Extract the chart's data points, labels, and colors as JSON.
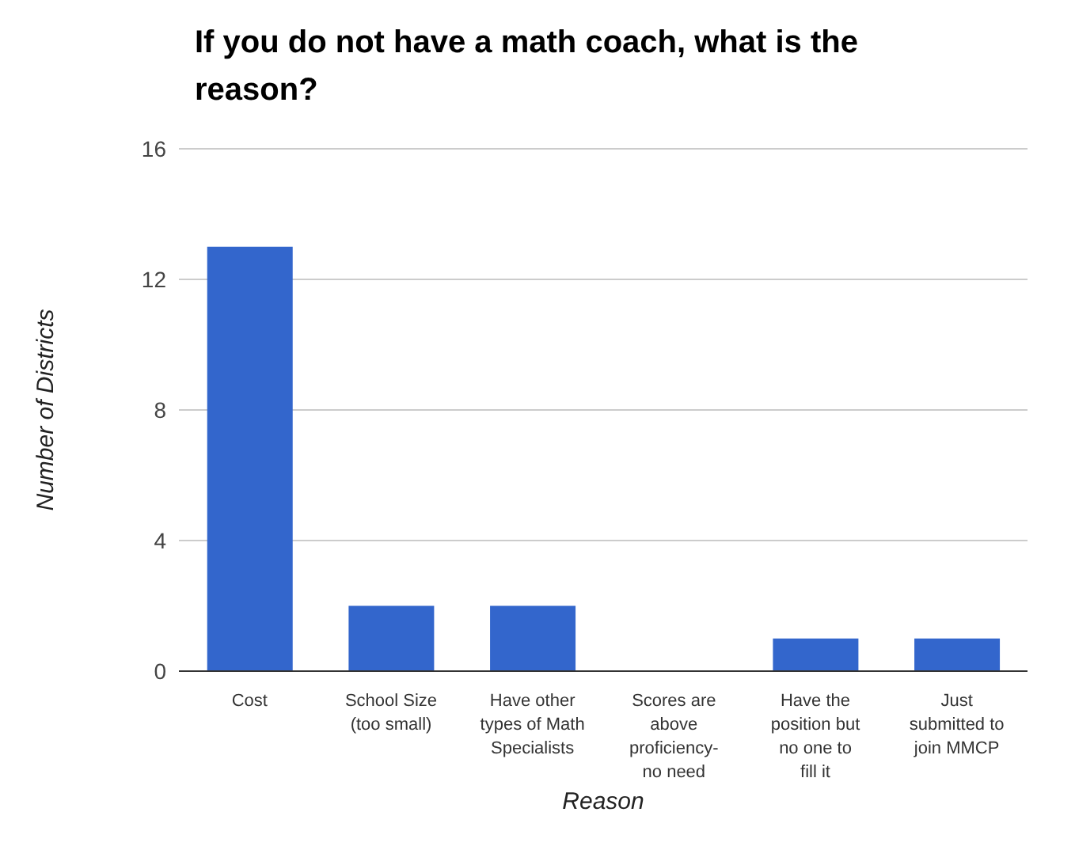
{
  "chart_data": {
    "type": "bar",
    "title": "If you do not have a math coach, what is the reason?",
    "xlabel": "Reason",
    "ylabel": "Number of Districts",
    "categories": [
      "Cost",
      "School Size (too small)",
      "Have other types of Math Specialists",
      "Scores are above proficiency- no need",
      "Have the position but no one to fill it",
      "Just submitted to join MMCP"
    ],
    "values": [
      13,
      2,
      2,
      0,
      1,
      1
    ],
    "color": "#3366cc",
    "ylim": [
      0,
      16
    ],
    "yticks": [
      0,
      4,
      8,
      12,
      16
    ],
    "grid": "y"
  }
}
